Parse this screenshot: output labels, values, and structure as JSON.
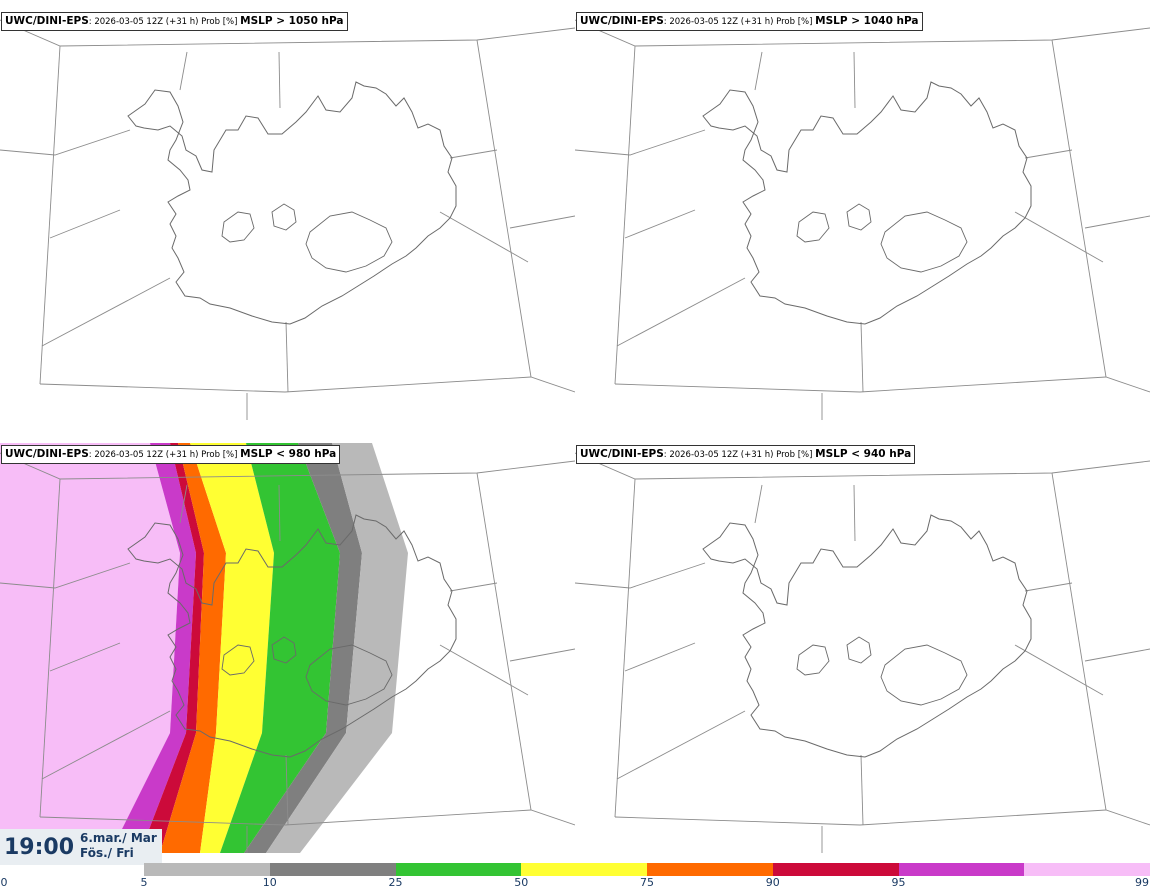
{
  "panels": [
    {
      "model": "UWC/DINI-EPS",
      "meta": ": 2026-03-05 12Z (+31 h) Prob [%] ",
      "threshold": "MSLP > 1050 hPa"
    },
    {
      "model": "UWC/DINI-EPS",
      "meta": ": 2026-03-05 12Z (+31 h) Prob [%] ",
      "threshold": "MSLP > 1040 hPa"
    },
    {
      "model": "UWC/DINI-EPS",
      "meta": ": 2026-03-05 12Z (+31 h) Prob [%] ",
      "threshold": "MSLP < 980 hPa"
    },
    {
      "model": "UWC/DINI-EPS",
      "meta": ": 2026-03-05 12Z (+31 h) Prob [%] ",
      "threshold": "MSLP < 940 hPa"
    }
  ],
  "valid_time": {
    "time": "19:00",
    "date_line1": "6.mar./ Mar",
    "date_line2": "Fös./ Fri"
  },
  "colorbar": {
    "labels": [
      "0",
      "5",
      "10",
      "25",
      "50",
      "75",
      "90",
      "95",
      "99"
    ],
    "colors": [
      "#b9b9b9",
      "#7f7f7f",
      "#33c433",
      "#ffff33",
      "#ff6a00",
      "#cc0a3a",
      "#c93ac9",
      "#f7bdf7"
    ]
  },
  "probability_bands": {
    "values": [
      5,
      10,
      25,
      50,
      75,
      90,
      95
    ],
    "colors": [
      "#b9b9b9",
      "#7f7f7f",
      "#33c433",
      "#ffff33",
      "#ff6a00",
      "#cc0a3a",
      "#c93ac9"
    ],
    "outer_color": "#f7bdf7"
  }
}
